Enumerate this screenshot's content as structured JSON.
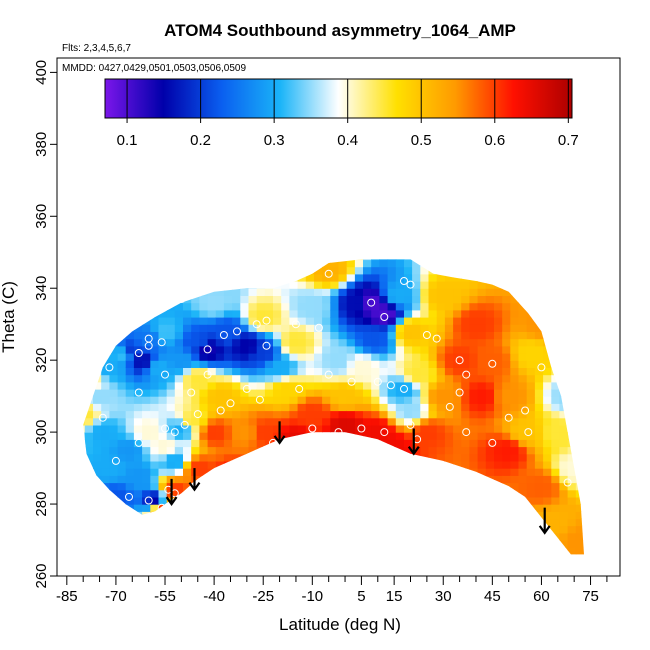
{
  "chart_data": {
    "type": "heatmap",
    "title": "ATOM4 Southbound asymmetry_1064_AMP",
    "annotations": {
      "flights": "Flts: 2,3,4,5,6,7",
      "dates": "MMDD: 0427,0429,0501,0503,0506,0509"
    },
    "xlabel": "Latitude (deg N)",
    "ylabel": "Theta (C)",
    "xlim": [
      -88,
      84
    ],
    "ylim": [
      260,
      404
    ],
    "xticks": [
      -85,
      -70,
      -55,
      -40,
      -25,
      -10,
      5,
      15,
      30,
      45,
      60,
      75
    ],
    "yticks": [
      260,
      280,
      300,
      320,
      340,
      360,
      380,
      400
    ],
    "colorbar": {
      "min": 0.07,
      "max": 0.705,
      "ticks": [
        0.1,
        0.2,
        0.3,
        0.4,
        0.5,
        0.6,
        0.7
      ],
      "tick_labels": [
        "0.1",
        "0.2",
        "0.3",
        "0.4",
        "0.5",
        "0.6",
        "0.7"
      ],
      "colors": [
        "#7b16ea",
        "#0000aa",
        "#0a5ff0",
        "#1ab4f8",
        "#ffffff",
        "#ffe000",
        "#ff9a00",
        "#ff1000",
        "#ad0000"
      ]
    },
    "domain": {
      "top": [
        [
          -80,
          302
        ],
        [
          -77,
          310
        ],
        [
          -74,
          318
        ],
        [
          -70,
          324
        ],
        [
          -65,
          328
        ],
        [
          -58,
          332
        ],
        [
          -50,
          336
        ],
        [
          -40,
          339
        ],
        [
          -30,
          340
        ],
        [
          -22,
          340
        ],
        [
          -15,
          342
        ],
        [
          -10,
          344
        ],
        [
          -5,
          347
        ],
        [
          5,
          348
        ],
        [
          20,
          348
        ],
        [
          27,
          344
        ],
        [
          33,
          343
        ],
        [
          40,
          342
        ],
        [
          45,
          341
        ],
        [
          50,
          339
        ],
        [
          56,
          333
        ],
        [
          60,
          328
        ],
        [
          63,
          318
        ],
        [
          66,
          310
        ],
        [
          68,
          300
        ],
        [
          70,
          290
        ],
        [
          72,
          280
        ],
        [
          73,
          266
        ]
      ],
      "bottom": [
        [
          69,
          266
        ],
        [
          62,
          274
        ],
        [
          55,
          282
        ],
        [
          50,
          285
        ],
        [
          40,
          289
        ],
        [
          30,
          292
        ],
        [
          20,
          294
        ],
        [
          10,
          298
        ],
        [
          0,
          300
        ],
        [
          -10,
          300
        ],
        [
          -20,
          298
        ],
        [
          -30,
          294
        ],
        [
          -40,
          290
        ],
        [
          -45,
          287
        ],
        [
          -50,
          283
        ],
        [
          -55,
          280
        ],
        [
          -58,
          278
        ],
        [
          -62,
          277
        ],
        [
          -67,
          280
        ],
        [
          -72,
          284
        ],
        [
          -76,
          288
        ],
        [
          -79,
          294
        ]
      ]
    },
    "field_anchors": [
      [
        -80,
        305,
        0.45
      ],
      [
        -78,
        315,
        0.42
      ],
      [
        -75,
        310,
        0.35
      ],
      [
        -72,
        318,
        0.3
      ],
      [
        -68,
        322,
        0.32
      ],
      [
        -66,
        323,
        0.2
      ],
      [
        -62,
        320,
        0.16
      ],
      [
        -60,
        326,
        0.25
      ],
      [
        -57,
        318,
        0.3
      ],
      [
        -55,
        328,
        0.32
      ],
      [
        -50,
        320,
        0.28
      ],
      [
        -45,
        325,
        0.22
      ],
      [
        -42,
        323,
        0.14
      ],
      [
        -36,
        328,
        0.22
      ],
      [
        -30,
        324,
        0.15
      ],
      [
        -25,
        322,
        0.2
      ],
      [
        -20,
        318,
        0.3
      ],
      [
        -40,
        336,
        0.35
      ],
      [
        -25,
        332,
        0.45
      ],
      [
        -74,
        300,
        0.3
      ],
      [
        -72,
        290,
        0.3
      ],
      [
        -70,
        282,
        0.22
      ],
      [
        -66,
        295,
        0.28
      ],
      [
        -63,
        288,
        0.28
      ],
      [
        -58,
        281,
        0.15
      ],
      [
        -56,
        279,
        0.6
      ],
      [
        -60,
        300,
        0.4
      ],
      [
        -55,
        296,
        0.4
      ],
      [
        -50,
        301,
        0.3
      ],
      [
        -47,
        303,
        0.45
      ],
      [
        -52,
        292,
        0.3
      ],
      [
        -45,
        315,
        0.45
      ],
      [
        -38,
        310,
        0.5
      ],
      [
        -40,
        300,
        0.6
      ],
      [
        -30,
        300,
        0.55
      ],
      [
        -35,
        288,
        0.62
      ],
      [
        -45,
        290,
        0.6
      ],
      [
        -52,
        284,
        0.6
      ],
      [
        -18,
        312,
        0.48
      ],
      [
        -15,
        325,
        0.45
      ],
      [
        -10,
        335,
        0.35
      ],
      [
        -5,
        345,
        0.52
      ],
      [
        -10,
        305,
        0.6
      ],
      [
        0,
        310,
        0.5
      ],
      [
        -2,
        320,
        0.35
      ],
      [
        5,
        318,
        0.4
      ],
      [
        4,
        336,
        0.16
      ],
      [
        8,
        336,
        0.1
      ],
      [
        12,
        333,
        0.1
      ],
      [
        9,
        326,
        0.22
      ],
      [
        16,
        338,
        0.3
      ],
      [
        20,
        328,
        0.5
      ],
      [
        22,
        316,
        0.45
      ],
      [
        18,
        312,
        0.3
      ],
      [
        20,
        306,
        0.35
      ],
      [
        10,
        300,
        0.64
      ],
      [
        25,
        300,
        0.6
      ],
      [
        30,
        310,
        0.55
      ],
      [
        35,
        320,
        0.6
      ],
      [
        30,
        338,
        0.5
      ],
      [
        40,
        330,
        0.6
      ],
      [
        45,
        320,
        0.58
      ],
      [
        42,
        310,
        0.62
      ],
      [
        50,
        310,
        0.55
      ],
      [
        55,
        300,
        0.5
      ],
      [
        57,
        322,
        0.48
      ],
      [
        60,
        330,
        0.55
      ],
      [
        50,
        295,
        0.62
      ],
      [
        60,
        285,
        0.58
      ],
      [
        65,
        300,
        0.45
      ],
      [
        68,
        310,
        0.35
      ],
      [
        70,
        290,
        0.4
      ],
      [
        72,
        270,
        0.55
      ],
      [
        64,
        275,
        0.52
      ],
      [
        -15,
        298,
        0.65
      ],
      [
        0,
        302,
        0.66
      ],
      [
        15,
        296,
        0.64
      ],
      [
        -25,
        300,
        0.6
      ]
    ],
    "sample_points": [
      [
        -60,
        326
      ],
      [
        -50,
        337
      ],
      [
        -33,
        328
      ],
      [
        -27,
        330
      ],
      [
        -24,
        331
      ],
      [
        -15,
        330
      ],
      [
        -8,
        329
      ],
      [
        -5,
        344
      ],
      [
        8,
        336
      ],
      [
        12,
        332
      ],
      [
        18,
        342
      ],
      [
        20,
        341
      ],
      [
        25,
        327
      ],
      [
        28,
        326
      ],
      [
        35,
        320
      ],
      [
        37,
        316
      ],
      [
        45,
        319
      ],
      [
        -63,
        322
      ],
      [
        -60,
        324
      ],
      [
        -56,
        325
      ],
      [
        -42,
        323
      ],
      [
        -37,
        327
      ],
      [
        -24,
        324
      ],
      [
        -47,
        311
      ],
      [
        -30,
        312
      ],
      [
        -35,
        308
      ],
      [
        -42,
        316
      ],
      [
        -55,
        316
      ],
      [
        -63,
        311
      ],
      [
        -72,
        318
      ],
      [
        -74,
        304
      ],
      [
        -70,
        292
      ],
      [
        -66,
        282
      ],
      [
        -60,
        281
      ],
      [
        -54,
        284
      ],
      [
        -52,
        283
      ],
      [
        -46,
        285
      ],
      [
        -40,
        287
      ],
      [
        -32,
        289
      ],
      [
        -25,
        294
      ],
      [
        -22,
        297
      ],
      [
        -10,
        301
      ],
      [
        -2,
        300
      ],
      [
        5,
        301
      ],
      [
        12,
        300
      ],
      [
        -55,
        301
      ],
      [
        -52,
        300
      ],
      [
        -49,
        302
      ],
      [
        -45,
        305
      ],
      [
        -38,
        306
      ],
      [
        -26,
        309
      ],
      [
        -14,
        312
      ],
      [
        -5,
        316
      ],
      [
        2,
        314
      ],
      [
        10,
        314
      ],
      [
        14,
        313
      ],
      [
        18,
        312
      ],
      [
        20,
        302
      ],
      [
        22,
        298
      ],
      [
        28,
        291
      ],
      [
        32,
        307
      ],
      [
        35,
        311
      ],
      [
        37,
        300
      ],
      [
        45,
        297
      ],
      [
        50,
        304
      ],
      [
        55,
        306
      ],
      [
        56,
        300
      ],
      [
        60,
        318
      ],
      [
        65,
        319
      ],
      [
        43,
        278
      ],
      [
        55,
        279
      ],
      [
        68,
        286
      ],
      [
        -63,
        297
      ],
      [
        -56,
        279
      ]
    ],
    "arrows": [
      {
        "lat": -53,
        "theta_top": 287,
        "theta_bottom": 280
      },
      {
        "lat": -46,
        "theta_top": 290,
        "theta_bottom": 284
      },
      {
        "lat": -20,
        "theta_top": 303,
        "theta_bottom": 297
      },
      {
        "lat": 21,
        "theta_top": 301,
        "theta_bottom": 294
      },
      {
        "lat": 61,
        "theta_top": 279,
        "theta_bottom": 272
      }
    ]
  }
}
